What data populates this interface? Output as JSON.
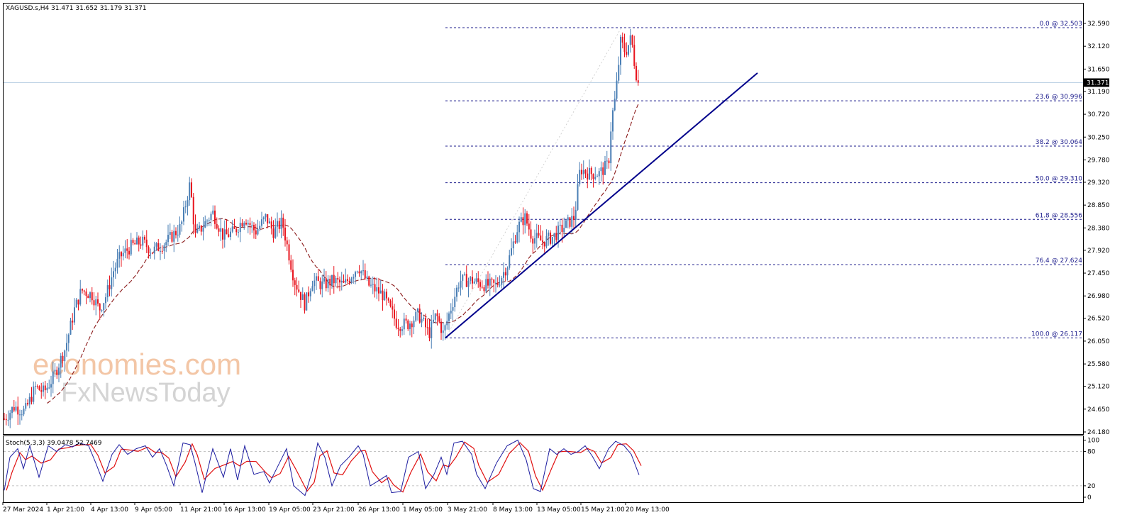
{
  "header": {
    "symbol": "XAGUSD.s,H4",
    "ohlc": "31.471 31.652 31.179 31.371"
  },
  "watermark": {
    "line1": "economies.com",
    "line2": "FxNewsToday"
  },
  "colors": {
    "bull": "#4a7fb5",
    "bear": "#e8141e",
    "ma": "#8b1a1a",
    "trendline": "#00008b",
    "fib": "#1c1c8c",
    "stoch_main": "#1c1ca0",
    "stoch_signal": "#e01010",
    "price_tag_bg": "#000000"
  },
  "price_axis": {
    "ticks": [
      "32.590",
      "32.120",
      "31.650",
      "31.190",
      "30.720",
      "30.250",
      "29.780",
      "29.320",
      "28.850",
      "28.380",
      "27.920",
      "27.450",
      "26.980",
      "26.520",
      "26.050",
      "25.580",
      "25.120",
      "24.650",
      "24.180"
    ],
    "current": "31.371"
  },
  "time_axis": {
    "labels": [
      "27 Mar 2024",
      "1 Apr 21:00",
      "4 Apr 13:00",
      "9 Apr 05:00",
      "11 Apr 21:00",
      "16 Apr 13:00",
      "19 Apr 05:00",
      "23 Apr 21:00",
      "26 Apr 13:00",
      "1 May 05:00",
      "3 May 21:00",
      "8 May 13:00",
      "13 May 05:00",
      "15 May 21:00",
      "20 May 13:00"
    ]
  },
  "fib_levels": [
    {
      "label": "0.0 @ 32.503",
      "price": 32.503
    },
    {
      "label": "23.6 @ 30.996",
      "price": 30.996
    },
    {
      "label": "38.2 @ 30.064",
      "price": 30.064
    },
    {
      "label": "50.0 @ 29.310",
      "price": 29.31
    },
    {
      "label": "61.8 @ 28.556",
      "price": 28.556
    },
    {
      "label": "76.4 @ 27.624",
      "price": 27.624
    },
    {
      "label": "100.0 @ 26.117",
      "price": 26.117
    }
  ],
  "stoch": {
    "label": "Stoch(5,3,3) 39.0478 52.7469",
    "axis_labels": [
      "100",
      "80",
      "20",
      "0"
    ],
    "levels": [
      80,
      20
    ]
  },
  "chart_data": {
    "type": "candlestick",
    "symbol": "XAGUSD.s",
    "timeframe": "H4",
    "ylim": [
      24.18,
      32.59
    ],
    "key_points": [
      {
        "x": "27 Mar 2024",
        "price": 24.6
      },
      {
        "x": "11 Apr 21:00",
        "price": 29.3
      },
      {
        "x": "2 May",
        "price": 26.117
      },
      {
        "x": "15 May 21:00",
        "price": 29.6
      },
      {
        "x": "20 May",
        "price": 32.503
      },
      {
        "x": "20 May 13:00 (last)",
        "price": 31.371
      }
    ],
    "last_candle": {
      "open": 31.471,
      "high": 31.652,
      "low": 31.179,
      "close": 31.371
    },
    "fibonacci_retracement": {
      "high": 32.503,
      "low": 26.117
    },
    "stochastic": {
      "k": 39.0478,
      "d": 52.7469,
      "params": "5,3,3"
    }
  }
}
